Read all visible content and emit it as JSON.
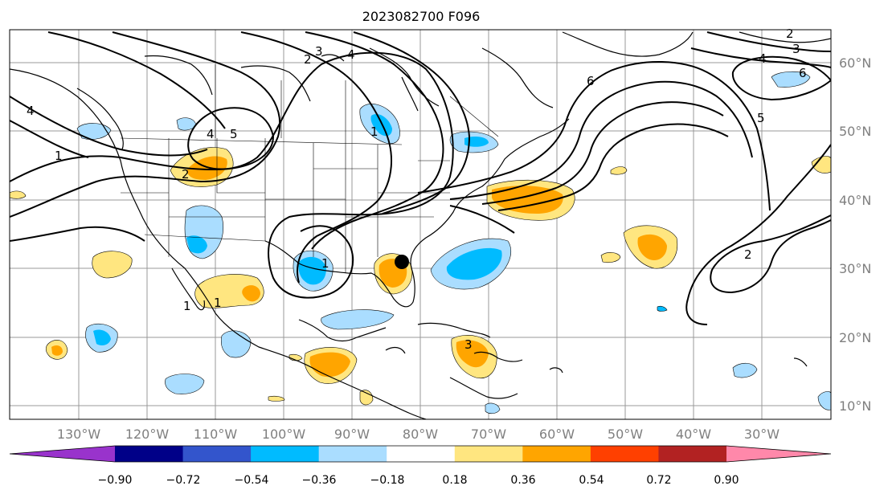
{
  "title": "2023082700 F096",
  "map": {
    "lon_labels": [
      "130°W",
      "120°W",
      "110°W",
      "100°W",
      "90°W",
      "80°W",
      "70°W",
      "60°W",
      "50°W",
      "40°W",
      "30°W"
    ],
    "lat_labels": [
      "60°N",
      "50°N",
      "40°N",
      "30°N",
      "20°N",
      "10°N"
    ],
    "contour_labels": [
      "2",
      "3",
      "4",
      "1",
      "4",
      "4",
      "5",
      "1",
      "2",
      "1",
      "1",
      "6",
      "6",
      "4",
      "3",
      "2",
      "5",
      "2",
      "1",
      "3"
    ],
    "marker": {
      "name": "black dot",
      "lon": -81.5,
      "lat": 31.0
    }
  },
  "colorbar": {
    "ticks": [
      "−0.90",
      "−0.72",
      "−0.54",
      "−0.36",
      "−0.18",
      "0.18",
      "0.36",
      "0.54",
      "0.72",
      "0.90"
    ],
    "colors": [
      "#9933cc",
      "#000088",
      "#3355cc",
      "#00bbff",
      "#aaddff",
      "#ffffff",
      "#ffe680",
      "#ffa500",
      "#ff4000",
      "#b22222",
      "#ff88aa"
    ]
  }
}
